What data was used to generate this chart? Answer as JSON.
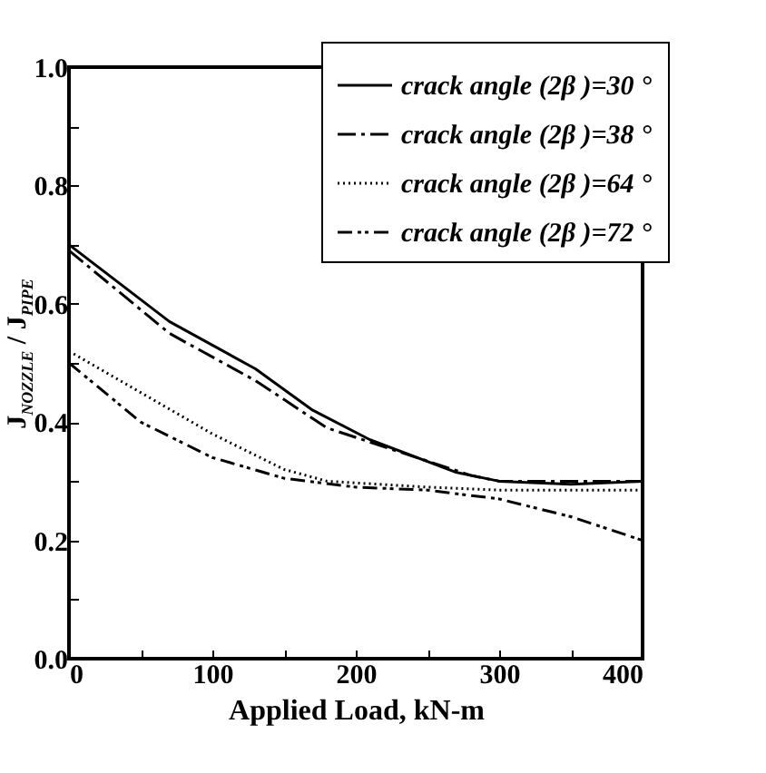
{
  "chart_data": {
    "type": "line",
    "xlabel": "Applied Load, kN-m",
    "ylabel": "J$_{NOZZLE}$ / J$_{PIPE}$",
    "xlim": [
      0,
      400
    ],
    "ylim": [
      0,
      1
    ],
    "xticks": [
      0,
      {
        "value": 50,
        "label": null
      },
      100,
      {
        "value": 150,
        "label": null
      },
      200,
      {
        "value": 250,
        "label": null
      },
      300,
      {
        "value": 350,
        "label": null
      },
      400
    ],
    "yticks": [
      {
        "value": 0,
        "label": "0.0"
      },
      {
        "value": 0.1,
        "label": null
      },
      {
        "value": 0.2,
        "label": "0.2"
      },
      {
        "value": 0.3,
        "label": null
      },
      {
        "value": 0.4,
        "label": "0.4"
      },
      {
        "value": 0.5,
        "label": null
      },
      {
        "value": 0.6,
        "label": "0.6"
      },
      {
        "value": 0.7,
        "label": null
      },
      {
        "value": 0.8,
        "label": "0.8"
      },
      {
        "value": 0.9,
        "label": null
      },
      {
        "value": 1,
        "label": "1.0"
      }
    ],
    "legend": "top right",
    "grid": false,
    "marker": "none",
    "series": [
      {
        "name": "crack angle (2β )=30 °",
        "color": "#000000",
        "line_style": "solid",
        "x": [
          0,
          70,
          130,
          170,
          210,
          270,
          300,
          350,
          400
        ],
        "values": [
          0.7,
          0.57,
          0.49,
          0.42,
          0.37,
          0.315,
          0.3,
          0.295,
          0.3
        ]
      },
      {
        "name": "crack angle (2β )=38 °",
        "color": "#000000",
        "line_style": "dashed",
        "x": [
          0,
          70,
          130,
          180,
          230,
          280,
          300,
          400
        ],
        "values": [
          0.69,
          0.55,
          0.47,
          0.39,
          0.35,
          0.31,
          0.3,
          0.3
        ]
      },
      {
        "name": "crack angle (2β )=64 °",
        "color": "#000000",
        "line_style": "dotted",
        "x": [
          0,
          50,
          100,
          150,
          180,
          250,
          300,
          400
        ],
        "values": [
          0.52,
          0.45,
          0.38,
          0.32,
          0.3,
          0.29,
          0.285,
          0.285
        ]
      },
      {
        "name": "crack angle (2β )=72 °",
        "color": "#000000",
        "line_style": "dashed",
        "x": [
          0,
          50,
          100,
          150,
          200,
          250,
          300,
          350,
          400
        ],
        "values": [
          0.5,
          0.4,
          0.34,
          0.305,
          0.29,
          0.285,
          0.27,
          0.24,
          0.2
        ]
      }
    ]
  }
}
